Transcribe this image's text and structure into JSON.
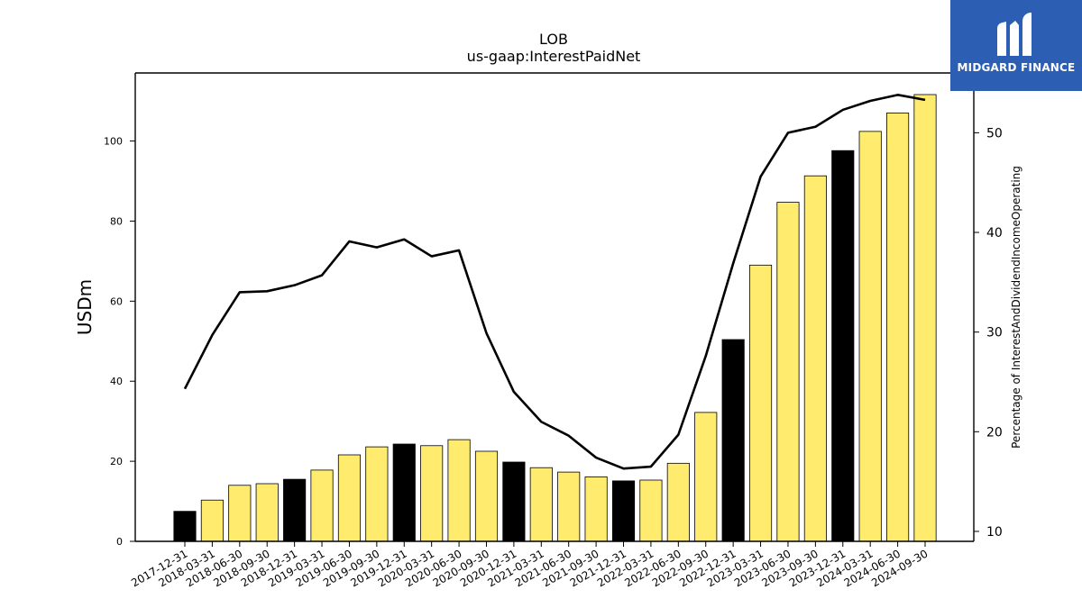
{
  "logo": {
    "text": "MIDGARD FINANCE",
    "icon": "midgard-m-logo-icon",
    "background": "#2c5fb3"
  },
  "colors": {
    "highlight_bar": "#000000",
    "bar": "#ffec6e",
    "line": "#000000"
  },
  "chart_data": {
    "type": "bar",
    "title": "LOB",
    "subtitle": "us-gaap:InterestPaidNet",
    "ylabel": "USDm",
    "y2label": "Percentage of InterestAndDividendIncomeOperating",
    "ylim": [
      0,
      117
    ],
    "y2lim": [
      9,
      56
    ],
    "yticks": [
      0,
      20,
      40,
      60,
      80,
      100
    ],
    "y2ticks": [
      10,
      20,
      30,
      40,
      50
    ],
    "categories": [
      "2017-12-31",
      "2018-03-31",
      "2018-06-30",
      "2018-09-30",
      "2018-12-31",
      "2019-03-31",
      "2019-06-30",
      "2019-09-30",
      "2019-12-31",
      "2020-03-31",
      "2020-06-30",
      "2020-09-30",
      "2020-12-31",
      "2021-03-31",
      "2021-06-30",
      "2021-09-30",
      "2021-12-31",
      "2022-03-31",
      "2022-06-30",
      "2022-09-30",
      "2022-12-31",
      "2023-03-31",
      "2023-06-30",
      "2023-09-30",
      "2023-12-31",
      "2024-03-31",
      "2024-06-30",
      "2024-09-30"
    ],
    "highlighted": [
      true,
      false,
      false,
      false,
      true,
      false,
      false,
      false,
      true,
      false,
      false,
      false,
      true,
      false,
      false,
      false,
      true,
      false,
      false,
      false,
      true,
      false,
      false,
      false,
      true,
      false,
      false,
      false
    ],
    "series": [
      {
        "axis": "left",
        "type": "bar",
        "values": [
          7.5,
          10.3,
          14.0,
          14.4,
          15.5,
          17.8,
          21.6,
          23.6,
          24.3,
          23.9,
          25.4,
          22.5,
          19.8,
          18.4,
          17.3,
          16.1,
          15.1,
          15.3,
          19.5,
          32.2,
          50.4,
          69.0,
          84.7,
          91.3,
          97.6,
          102.4,
          107.0,
          111.6
        ]
      },
      {
        "axis": "right",
        "type": "line",
        "values": [
          24.3,
          29.7,
          34.0,
          34.1,
          34.7,
          35.7,
          39.1,
          38.5,
          39.3,
          37.6,
          38.2,
          29.9,
          24.0,
          21.0,
          19.6,
          17.4,
          16.3,
          16.5,
          19.7,
          27.6,
          36.9,
          45.6,
          50.0,
          50.6,
          52.3,
          53.2,
          53.8,
          53.3
        ]
      }
    ]
  }
}
